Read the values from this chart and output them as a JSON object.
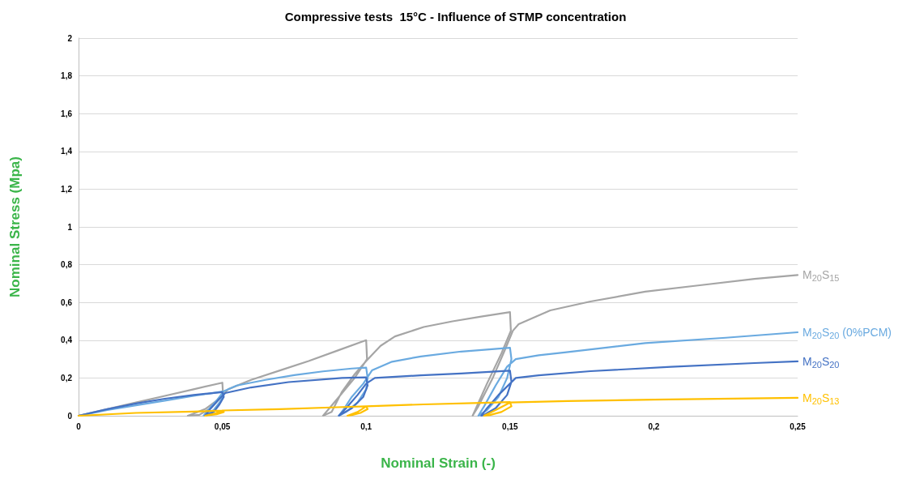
{
  "chart_data": {
    "type": "line",
    "title": "Compressive tests  15°C - Influence of STMP concentration",
    "xlabel": "Nominal Strain (-)",
    "ylabel": "Nominal Stress (Mpa)",
    "xlim": [
      0,
      0.25
    ],
    "xticks": [
      0,
      {
        "value": 0.05,
        "label": "0,05"
      },
      {
        "value": 0.1,
        "label": "0,1"
      },
      {
        "value": 0.15,
        "label": "0,15"
      },
      {
        "value": 0.2,
        "label": "0,2"
      },
      {
        "value": 0.25,
        "label": "0,25"
      }
    ],
    "ylim": [
      0,
      2
    ],
    "yticks": [
      0,
      {
        "value": 0.2,
        "label": "0,2"
      },
      {
        "value": 0.4,
        "label": "0,4"
      },
      {
        "value": 0.6,
        "label": "0,6"
      },
      {
        "value": 0.8,
        "label": "0,8"
      },
      1,
      {
        "value": 1.2,
        "label": "1,2"
      },
      {
        "value": 1.4,
        "label": "1,4"
      },
      {
        "value": 1.6,
        "label": "1,6"
      },
      {
        "value": 1.8,
        "label": "1,8"
      },
      2
    ],
    "grid": "y",
    "legend": false,
    "marker": "none",
    "line_style": "solid",
    "series": [
      {
        "name": "M$_{20}$S$_{15}$",
        "color": "#a5a5a5",
        "x": [
          0,
          0.01,
          0.02,
          0.03,
          0.04,
          0.05,
          0.0502,
          0.048,
          0.044,
          0.038,
          0.042,
          0.046,
          0.049,
          0.052,
          0.06,
          0.07,
          0.08,
          0.09,
          0.1,
          0.1003,
          0.096,
          0.09,
          0.085,
          0.088,
          0.0915,
          0.096,
          0.1,
          0.105,
          0.11,
          0.12,
          0.13,
          0.14,
          0.15,
          0.1503,
          0.147,
          0.142,
          0.137,
          0.139,
          0.144,
          0.148,
          0.151,
          0.153,
          0.164,
          0.178,
          0.197,
          0.216,
          0.235,
          0.25
        ],
        "values": [
          0,
          0.035,
          0.07,
          0.105,
          0.14,
          0.175,
          0.12,
          0.08,
          0.035,
          0,
          0.005,
          0.04,
          0.09,
          0.14,
          0.19,
          0.24,
          0.29,
          0.345,
          0.4,
          0.3,
          0.2,
          0.09,
          0,
          0.02,
          0.125,
          0.22,
          0.29,
          0.37,
          0.42,
          0.47,
          0.5,
          0.525,
          0.549,
          0.45,
          0.33,
          0.17,
          0,
          0.05,
          0.2,
          0.34,
          0.45,
          0.485,
          0.558,
          0.605,
          0.657,
          0.691,
          0.725,
          0.745
        ]
      },
      {
        "name": "M$_{20}$S$_{20}$ (0%PCM)",
        "color": "#6aaae0",
        "x": [
          0,
          0.01,
          0.02,
          0.03,
          0.04,
          0.05,
          0.0505,
          0.049,
          0.047,
          0.044,
          0.0435,
          0.045,
          0.048,
          0.0505,
          0.055,
          0.065,
          0.075,
          0.085,
          0.095,
          0.1,
          0.1005,
          0.1,
          0.097,
          0.093,
          0.0905,
          0.092,
          0.095,
          0.099,
          0.102,
          0.109,
          0.119,
          0.133,
          0.15,
          0.1505,
          0.149,
          0.146,
          0.142,
          0.139,
          0.141,
          0.145,
          0.149,
          0.152,
          0.16,
          0.169,
          0.183,
          0.197,
          0.225,
          0.25
        ],
        "values": [
          0,
          0.03,
          0.055,
          0.08,
          0.105,
          0.128,
          0.11,
          0.07,
          0.03,
          0.005,
          0,
          0.03,
          0.08,
          0.13,
          0.16,
          0.19,
          0.215,
          0.235,
          0.25,
          0.255,
          0.2,
          0.14,
          0.07,
          0.02,
          0,
          0.03,
          0.1,
          0.17,
          0.24,
          0.286,
          0.314,
          0.34,
          0.36,
          0.3,
          0.2,
          0.1,
          0.03,
          0,
          0.05,
          0.16,
          0.26,
          0.3,
          0.32,
          0.335,
          0.36,
          0.385,
          0.413,
          0.442
        ]
      },
      {
        "name": "M$_{20}$S$_{20}$",
        "color": "#4472c4",
        "x": [
          0,
          0.01,
          0.02,
          0.03,
          0.04,
          0.05,
          0.0505,
          0.049,
          0.047,
          0.0445,
          0.044,
          0.046,
          0.049,
          0.051,
          0.06,
          0.073,
          0.0916,
          0.1,
          0.1005,
          0.099,
          0.095,
          0.091,
          0.0905,
          0.093,
          0.097,
          0.1,
          0.103,
          0.119,
          0.133,
          0.15,
          0.1505,
          0.149,
          0.145,
          0.141,
          0.14,
          0.142,
          0.146,
          0.15,
          0.152,
          0.16,
          0.178,
          0.206,
          0.235,
          0.25
        ],
        "values": [
          0,
          0.035,
          0.065,
          0.09,
          0.11,
          0.125,
          0.1,
          0.06,
          0.02,
          0.002,
          0,
          0.04,
          0.09,
          0.12,
          0.15,
          0.178,
          0.2,
          0.203,
          0.16,
          0.1,
          0.04,
          0.005,
          0,
          0.04,
          0.11,
          0.17,
          0.2,
          0.214,
          0.224,
          0.239,
          0.18,
          0.11,
          0.04,
          0.005,
          0,
          0.04,
          0.11,
          0.17,
          0.2,
          0.214,
          0.236,
          0.259,
          0.279,
          0.288
        ]
      },
      {
        "name": "M$_{20}$S$_{13}$",
        "color": "#ffc000",
        "x": [
          0,
          0.02,
          0.04,
          0.05,
          0.0505,
          0.048,
          0.045,
          0.044,
          0.047,
          0.05,
          0.07,
          0.09,
          0.1,
          0.1005,
          0.098,
          0.095,
          0.0935,
          0.097,
          0.1,
          0.12,
          0.14,
          0.15,
          0.1505,
          0.147,
          0.143,
          0.141,
          0.145,
          0.15,
          0.17,
          0.2,
          0.25
        ],
        "values": [
          0,
          0.015,
          0.022,
          0.027,
          0.02,
          0.008,
          0.002,
          0,
          0.01,
          0.028,
          0.035,
          0.045,
          0.05,
          0.035,
          0.015,
          0.004,
          0,
          0.02,
          0.05,
          0.06,
          0.068,
          0.072,
          0.05,
          0.02,
          0.004,
          0,
          0.03,
          0.07,
          0.078,
          0.085,
          0.095
        ]
      }
    ]
  }
}
